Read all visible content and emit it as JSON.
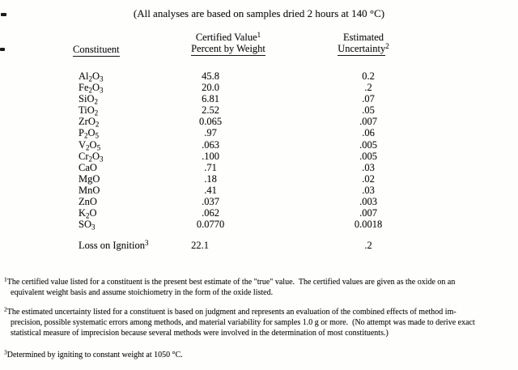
{
  "page": {
    "title": "(All analyses are based on samples dried 2 hours at 140 °C)"
  },
  "table": {
    "col_headers": {
      "constituent": "Constituent",
      "certified_line1": "Certified Value",
      "certified_sup": "1",
      "certified_line2": "Percent by Weight",
      "uncertainty_line1": "Estimated",
      "uncertainty_line2": "Uncertainty",
      "uncertainty_sup": "2"
    },
    "rows": [
      {
        "formula": "Al2O3",
        "value": "45.8",
        "uncertainty": "0.2"
      },
      {
        "formula": "Fe2O3",
        "value": "20.0",
        "uncertainty": ".2"
      },
      {
        "formula": "SiO2",
        "value": "6.81",
        "uncertainty": ".07"
      },
      {
        "formula": "TiO2",
        "value": "2.52",
        "uncertainty": ".05"
      },
      {
        "formula": "ZrO2",
        "value": "0.065",
        "uncertainty": ".007"
      },
      {
        "formula": "P2O5",
        "value": ".97",
        "uncertainty": ".06"
      },
      {
        "formula": "V2O5",
        "value": ".063",
        "uncertainty": ".005"
      },
      {
        "formula": "Cr2O3",
        "value": ".100",
        "uncertainty": ".005"
      },
      {
        "formula": "CaO",
        "value": ".71",
        "uncertainty": ".03"
      },
      {
        "formula": "MgO",
        "value": ".18",
        "uncertainty": ".02"
      },
      {
        "formula": "MnO",
        "value": ".41",
        "uncertainty": ".03"
      },
      {
        "formula": "ZnO",
        "value": ".037",
        "uncertainty": ".003"
      },
      {
        "formula": "K2O",
        "value": ".062",
        "uncertainty": ".007"
      },
      {
        "formula": "SO3",
        "value": "0.0770",
        "uncertainty": "0.0018"
      }
    ],
    "loss_on_ignition": {
      "label": "Loss on Ignition",
      "sup": "3",
      "value": "22.1",
      "uncertainty": ".2"
    }
  },
  "footnotes": [
    {
      "sup": "1",
      "lines": [
        "The certified value listed for a constituent is the present best estimate of the \"true\" value.  The certified values are given as the oxide on an",
        "equivalent weight basis and assume stoichiometry in the form of the oxide listed."
      ]
    },
    {
      "sup": "2",
      "lines": [
        "The estimated uncertainty listed for a constituent is based on judgment and represents an evaluation of the combined effects of method im-",
        "precision, possible systematic errors among methods, and material variability for samples 1.0 g or more.  (No attempt was made to derive exact",
        "statistical measure of imprecision because several methods were involved in the determination of most constituents.)"
      ]
    },
    {
      "sup": "3",
      "lines": [
        "Determined by igniting to constant weight at 1050 °C."
      ]
    }
  ]
}
